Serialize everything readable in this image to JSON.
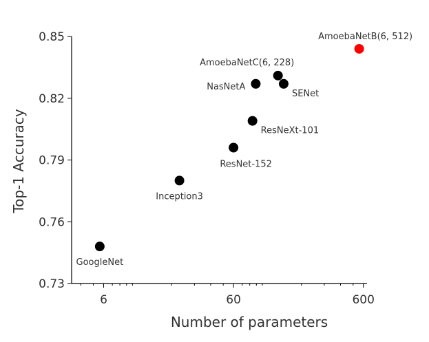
{
  "chart_data": {
    "type": "scatter",
    "title": "",
    "xlabel": "Number of parameters",
    "ylabel": "Top-1 Accuracy",
    "x_scale": "log",
    "xlim": [
      3.4,
      640
    ],
    "ylim": [
      0.73,
      0.85
    ],
    "x_ticks": [
      6,
      60,
      600
    ],
    "x_tick_labels": [
      "6",
      "60",
      "600"
    ],
    "y_ticks": [
      0.73,
      0.76,
      0.79,
      0.82,
      0.85
    ],
    "y_tick_labels": [
      "0.73",
      "0.76",
      "0.79",
      "0.82",
      "0.85"
    ],
    "grid": false,
    "colors": {
      "default_point": "#000000",
      "highlight_point": "#ff0000",
      "text": "#333333"
    },
    "points": [
      {
        "name": "GoogleNet",
        "x": 5.6,
        "y": 0.748,
        "color": "#000000",
        "label_pos": "below"
      },
      {
        "name": "Inception3",
        "x": 23,
        "y": 0.78,
        "color": "#000000",
        "label_pos": "below"
      },
      {
        "name": "ResNet-152",
        "x": 60,
        "y": 0.796,
        "color": "#000000",
        "label_pos": "below-right"
      },
      {
        "name": "ResNeXt-101",
        "x": 84,
        "y": 0.809,
        "color": "#000000",
        "label_pos": "right-below"
      },
      {
        "name": "NasNetA",
        "x": 89,
        "y": 0.827,
        "color": "#000000",
        "label_pos": "left"
      },
      {
        "name": "SENet",
        "x": 146,
        "y": 0.827,
        "color": "#000000",
        "label_pos": "right-below"
      },
      {
        "name": "AmoebaNetC(6, 228)",
        "x": 132,
        "y": 0.831,
        "color": "#000000",
        "label_pos": "above-left"
      },
      {
        "name": "AmoebaNetB(6, 512)",
        "x": 557,
        "y": 0.844,
        "color": "#ff0000",
        "label_pos": "above"
      }
    ]
  }
}
